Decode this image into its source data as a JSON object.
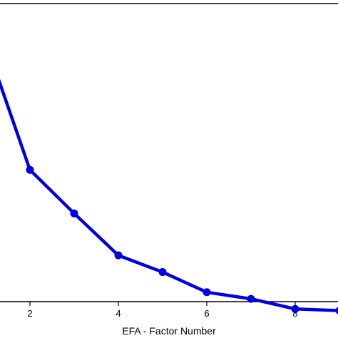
{
  "chart_data": {
    "type": "line",
    "title": "",
    "xlabel": "EFA - Factor Number",
    "ylabel": "",
    "x_ticks": [
      "2",
      "4",
      "6",
      "8"
    ],
    "xlim": [
      1,
      9
    ],
    "ylim": [
      0,
      1
    ],
    "grid": false,
    "series": [
      {
        "color": "#0000e6",
        "marker": "circle",
        "x": [
          1,
          2,
          3,
          4,
          5,
          6,
          7,
          8,
          9
        ],
        "y": [
          0.82,
          0.44,
          0.31,
          0.185,
          0.135,
          0.075,
          0.055,
          0.025,
          0.02
        ]
      }
    ]
  }
}
